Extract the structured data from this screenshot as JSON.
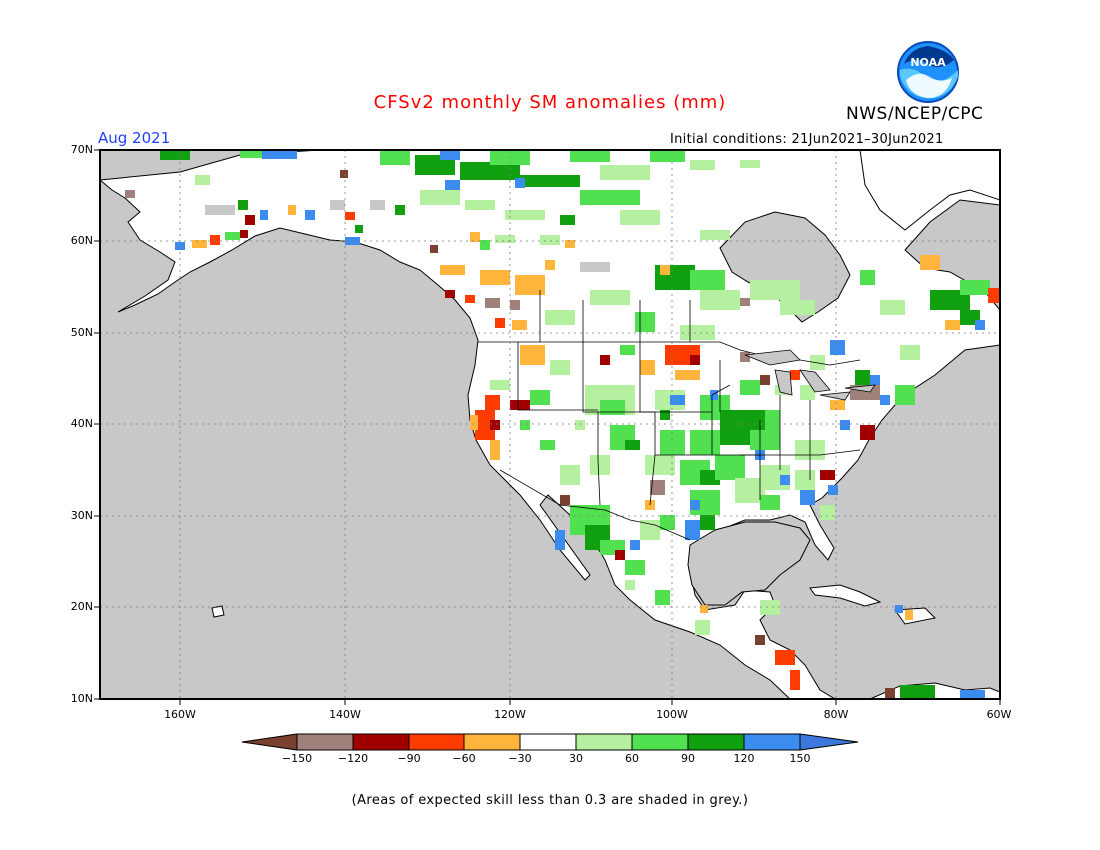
{
  "title": "CFSv2 monthly SM anomalies (mm)",
  "agency": "NWS/NCEP/CPC",
  "logo_text": "NOAA",
  "valid_month": "Aug 2021",
  "initial_conditions": "Initial conditions: 21Jun2021–30Jun2021",
  "footnote": "(Areas of expected skill less than 0.3 are shaded in grey.)",
  "map": {
    "latitude_labels": [
      "70N",
      "60N",
      "50N",
      "40N",
      "30N",
      "20N",
      "10N"
    ],
    "longitude_labels": [
      "160W",
      "140W",
      "120W",
      "100W",
      "80W",
      "60W"
    ],
    "colors": {
      "ocean_low_skill": "#c8c8c8",
      "land_near_normal": "#ffffff",
      "coastline": "#000000",
      "gridline": "#7f7f7f"
    }
  },
  "colorbar": {
    "labels": [
      "−150",
      "−120",
      "−90",
      "−60",
      "−30",
      "30",
      "60",
      "90",
      "120",
      "150"
    ],
    "colors": [
      "#7a4030",
      "#a0807a",
      "#a00000",
      "#ff3c00",
      "#ffb43c",
      "#ffffff",
      "#b4f0a0",
      "#50e050",
      "#10a010",
      "#3c8cf0",
      "#3c78dc"
    ]
  }
}
